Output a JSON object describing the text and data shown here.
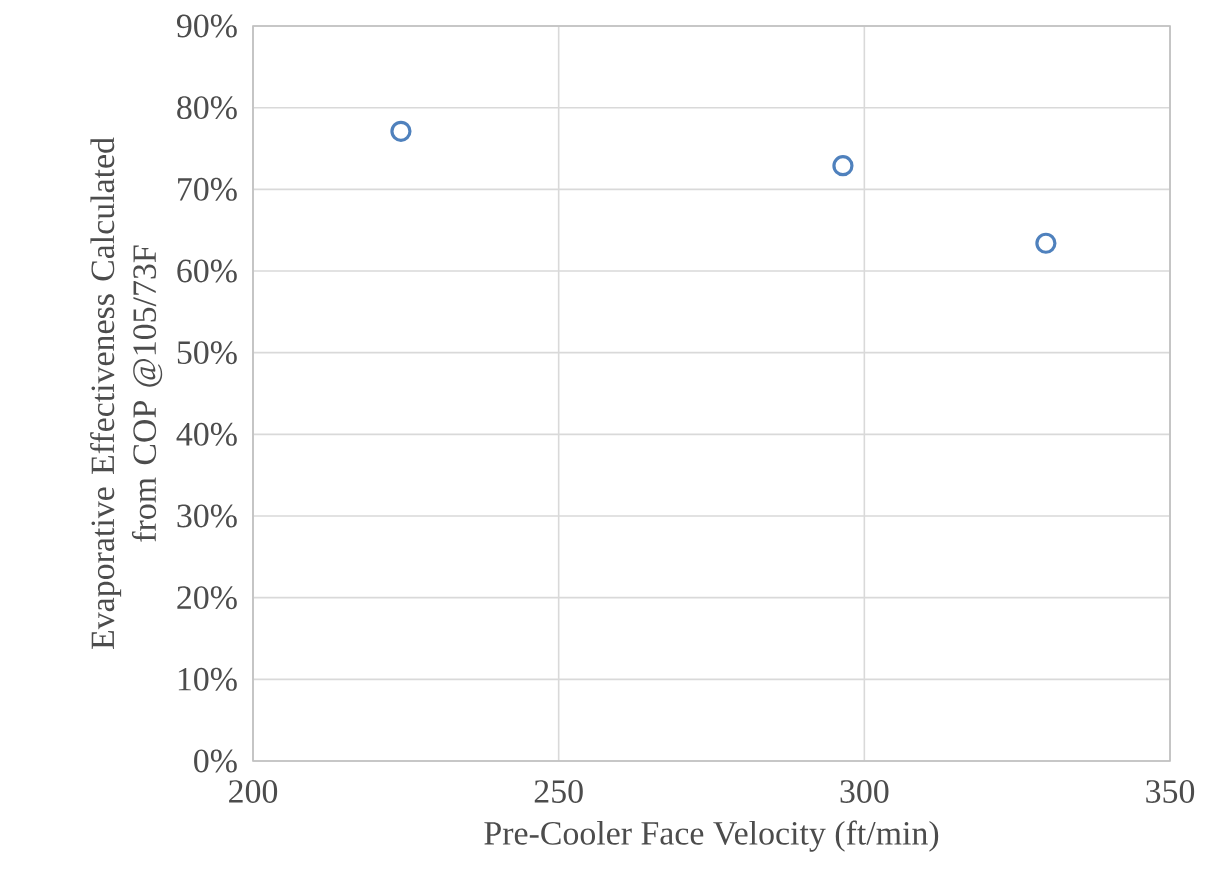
{
  "chart_data": {
    "type": "scatter",
    "xlabel": "Pre-Cooler Face Velocity (ft/min)",
    "ylabel": "Evaporative Effectiveness Calculated\nfrom COP @105/73F",
    "x": [
      224.2,
      296.5,
      329.7
    ],
    "series": [
      {
        "color": "#4f81bd",
        "values": [
          77.1,
          72.9,
          63.4
        ]
      }
    ],
    "xlim": [
      200,
      350
    ],
    "xticks": [
      200,
      250,
      300,
      350
    ],
    "ylim": [
      0,
      90
    ],
    "yticks": [
      {
        "value": 0,
        "label": "0%"
      },
      {
        "value": 10,
        "label": "10%"
      },
      {
        "value": 20,
        "label": "20%"
      },
      {
        "value": 30,
        "label": "30%"
      },
      {
        "value": 40,
        "label": "40%"
      },
      {
        "value": 50,
        "label": "50%"
      },
      {
        "value": 60,
        "label": "60%"
      },
      {
        "value": 70,
        "label": "70%"
      },
      {
        "value": 80,
        "label": "80%"
      },
      {
        "value": 90,
        "label": "90%"
      }
    ],
    "grid": true,
    "marker": "circle"
  }
}
